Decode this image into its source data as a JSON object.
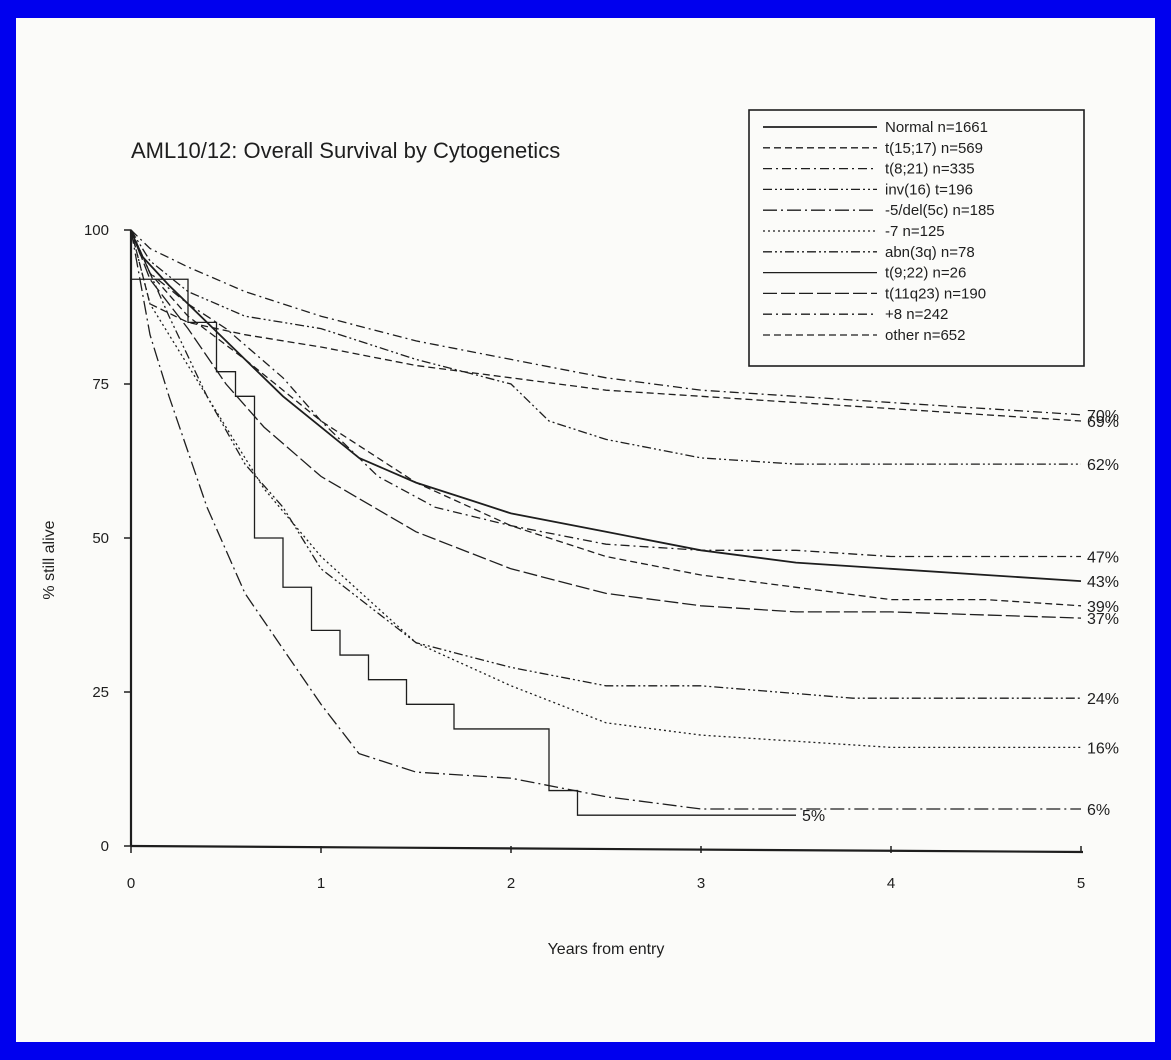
{
  "colors": {
    "frame": "#0000ee",
    "paper": "#fbfbf9",
    "ink": "#1e1e1e"
  },
  "chart_data": {
    "type": "line",
    "title": "AML10/12: Overall Survival by Cytogenetics",
    "xlabel": "Years from entry",
    "ylabel": "% still alive",
    "xlim": [
      0,
      5
    ],
    "ylim": [
      0,
      100
    ],
    "xticks": [
      "0",
      "1",
      "2",
      "3",
      "4",
      "5"
    ],
    "yticks": [
      "0",
      "25",
      "50",
      "75",
      "100"
    ],
    "grid": false,
    "legend_position": "top-right",
    "series": [
      {
        "name": "Normal n=1661",
        "dash": "solid",
        "end_label": "43%",
        "x": [
          0,
          0.05,
          0.2,
          0.4,
          0.6,
          0.8,
          1.0,
          1.2,
          1.5,
          1.8,
          2.0,
          2.5,
          3.0,
          3.5,
          4.0,
          4.5,
          5.0
        ],
        "y": [
          100,
          96,
          91,
          85,
          79,
          73,
          68,
          63,
          59,
          56,
          54,
          51,
          48,
          46,
          45,
          44,
          43
        ]
      },
      {
        "name": "t(15;17) n=569",
        "dash": "dashed",
        "end_label": "69%",
        "x": [
          0,
          0.1,
          0.3,
          0.6,
          1.0,
          1.5,
          2.0,
          2.5,
          3.0,
          3.5,
          4.0,
          4.5,
          5.0
        ],
        "y": [
          100,
          88,
          85,
          83,
          81,
          78,
          76,
          74,
          73,
          72,
          71,
          70,
          69
        ]
      },
      {
        "name": "t(8;21) n=335",
        "dash": "dash-dot",
        "end_label": "70%",
        "x": [
          0,
          0.1,
          0.3,
          0.6,
          1.0,
          1.5,
          2.0,
          2.5,
          3.0,
          3.5,
          4.0,
          4.5,
          5.0
        ],
        "y": [
          100,
          97,
          94,
          90,
          86,
          82,
          79,
          76,
          74,
          73,
          72,
          71,
          70
        ]
      },
      {
        "name": "inv(16) t=196",
        "dash": "dash-dot-dot",
        "end_label": "62%",
        "x": [
          0,
          0.1,
          0.3,
          0.6,
          1.0,
          1.5,
          2.0,
          2.2,
          2.5,
          3.0,
          3.5,
          4.0,
          4.5,
          5.0
        ],
        "y": [
          100,
          95,
          90,
          86,
          84,
          79,
          75,
          69,
          66,
          63,
          62,
          62,
          62,
          62
        ]
      },
      {
        "name": "-5/del(5c) n=185",
        "dash": "long-dash-dot",
        "end_label": "6%",
        "x": [
          0,
          0.1,
          0.2,
          0.4,
          0.6,
          0.8,
          1.0,
          1.2,
          1.5,
          2.0,
          2.5,
          3.0,
          4.0,
          5.0
        ],
        "y": [
          100,
          83,
          73,
          55,
          41,
          32,
          23,
          15,
          12,
          11,
          8,
          6,
          6,
          6
        ]
      },
      {
        "name": "-7 n=125",
        "dash": "dotted",
        "end_label": "16%",
        "x": [
          0,
          0.1,
          0.3,
          0.5,
          0.7,
          1.0,
          1.5,
          2.0,
          2.5,
          3.0,
          4.0,
          5.0
        ],
        "y": [
          100,
          88,
          78,
          68,
          58,
          47,
          33,
          26,
          20,
          18,
          16,
          16
        ]
      },
      {
        "name": "abn(3q) n=78",
        "dash": "dash-dot-dot",
        "end_label": "24%",
        "x": [
          0,
          0.2,
          0.4,
          0.6,
          0.8,
          1.0,
          1.5,
          2.0,
          2.5,
          3.0,
          3.8,
          5.0
        ],
        "y": [
          100,
          86,
          73,
          62,
          55,
          45,
          33,
          29,
          26,
          26,
          24,
          24
        ]
      },
      {
        "name": "t(9;22) n=26",
        "dash": "solid-step",
        "end_label": "5%",
        "x": [
          0,
          0.3,
          0.45,
          0.55,
          0.65,
          0.8,
          0.95,
          1.1,
          1.25,
          1.45,
          1.7,
          2.2,
          2.35,
          3.5
        ],
        "y": [
          92,
          85,
          77,
          73,
          50,
          42,
          35,
          31,
          27,
          23,
          19,
          9,
          5,
          5
        ]
      },
      {
        "name": "t(11q23) n=190",
        "dash": "long-dash",
        "end_label": "37%",
        "x": [
          0,
          0.1,
          0.3,
          0.5,
          0.7,
          1.0,
          1.5,
          2.0,
          2.5,
          3.0,
          3.5,
          4.0,
          5.0
        ],
        "y": [
          100,
          92,
          84,
          75,
          68,
          60,
          51,
          45,
          41,
          39,
          38,
          38,
          37
        ]
      },
      {
        "name": "+8 n=242",
        "dash": "dash-dot",
        "end_label": "47%",
        "x": [
          0,
          0.1,
          0.3,
          0.5,
          0.8,
          1.0,
          1.3,
          1.6,
          2.0,
          2.5,
          3.0,
          3.5,
          4.0,
          4.5,
          5.0
        ],
        "y": [
          100,
          93,
          88,
          84,
          76,
          69,
          60,
          55,
          52,
          49,
          48,
          48,
          47,
          47,
          47
        ]
      },
      {
        "name": "other n=652",
        "dash": "dashed",
        "end_label": "39%",
        "x": [
          0,
          0.1,
          0.3,
          0.6,
          1.0,
          1.5,
          2.0,
          2.5,
          3.0,
          3.5,
          4.0,
          4.5,
          5.0
        ],
        "y": [
          100,
          93,
          86,
          79,
          69,
          59,
          52,
          47,
          44,
          42,
          40,
          40,
          39
        ]
      }
    ]
  }
}
